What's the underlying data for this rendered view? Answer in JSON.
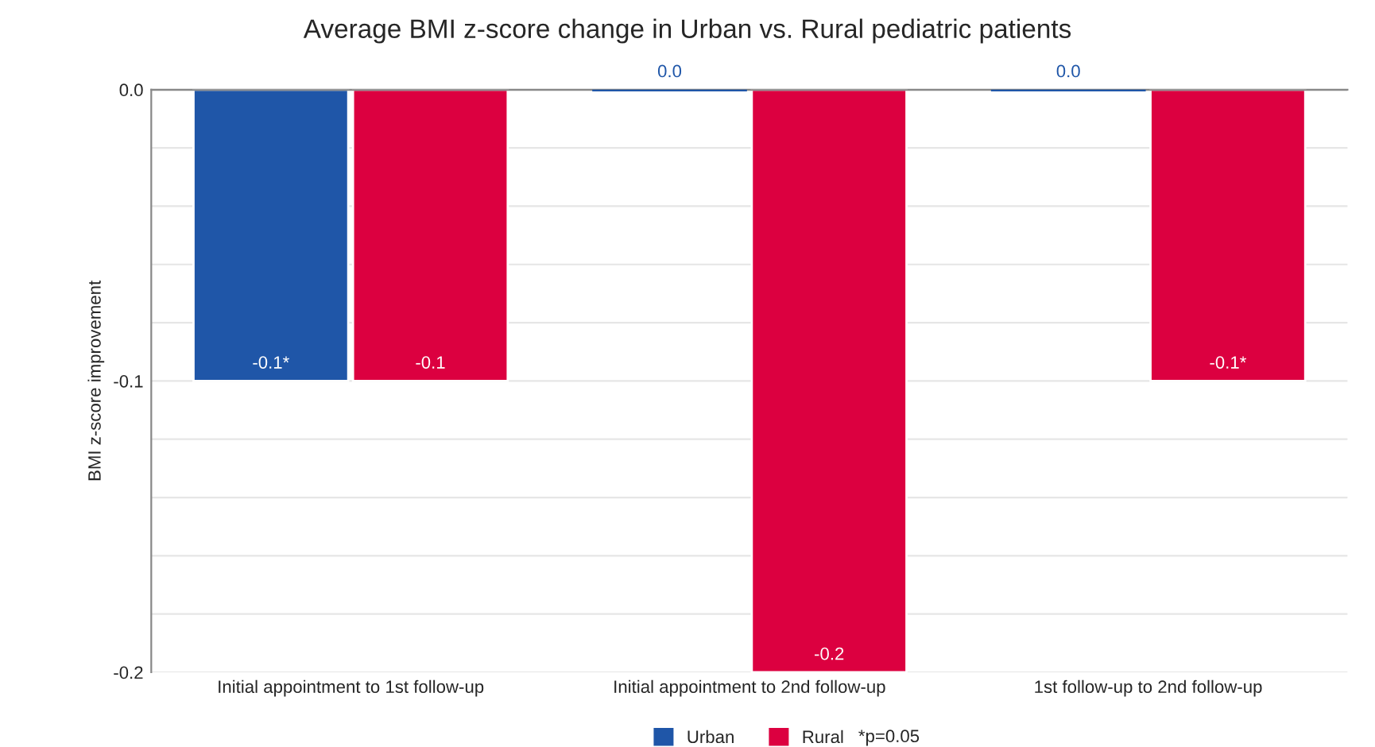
{
  "chart_data": {
    "type": "bar",
    "title": "Average BMI z-score change in Urban vs. Rural pediatric patients",
    "ylabel": "BMI z-score improvement",
    "categories": [
      "Initial appointment to 1st follow-up",
      "Initial appointment to 2nd follow-up",
      "1st follow-up to 2nd follow-up"
    ],
    "series": [
      {
        "name": "Urban",
        "color": "#1f56a8",
        "values": [
          -0.1,
          0.0,
          0.0
        ],
        "value_labels": [
          "-0.1*",
          "0.0",
          "0.0"
        ]
      },
      {
        "name": "Rural",
        "color": "#dc0040",
        "values": [
          -0.1,
          -0.2,
          -0.1
        ],
        "value_labels": [
          "-0.1",
          "-0.2",
          "-0.1*"
        ]
      }
    ],
    "ylim": [
      -0.2,
      0.0
    ],
    "yticks": [
      {
        "value": 0.0,
        "label": "0.0"
      },
      {
        "value": -0.02,
        "label": null
      },
      {
        "value": -0.04,
        "label": null
      },
      {
        "value": -0.06,
        "label": null
      },
      {
        "value": -0.08,
        "label": null
      },
      {
        "value": -0.1,
        "label": "-0.1"
      },
      {
        "value": -0.12,
        "label": null
      },
      {
        "value": -0.14,
        "label": null
      },
      {
        "value": -0.16,
        "label": null
      },
      {
        "value": -0.18,
        "label": null
      },
      {
        "value": -0.2,
        "label": "-0.2"
      }
    ],
    "grid": "y",
    "legend": "bottom",
    "annotations": [
      "*p=0.05"
    ]
  }
}
